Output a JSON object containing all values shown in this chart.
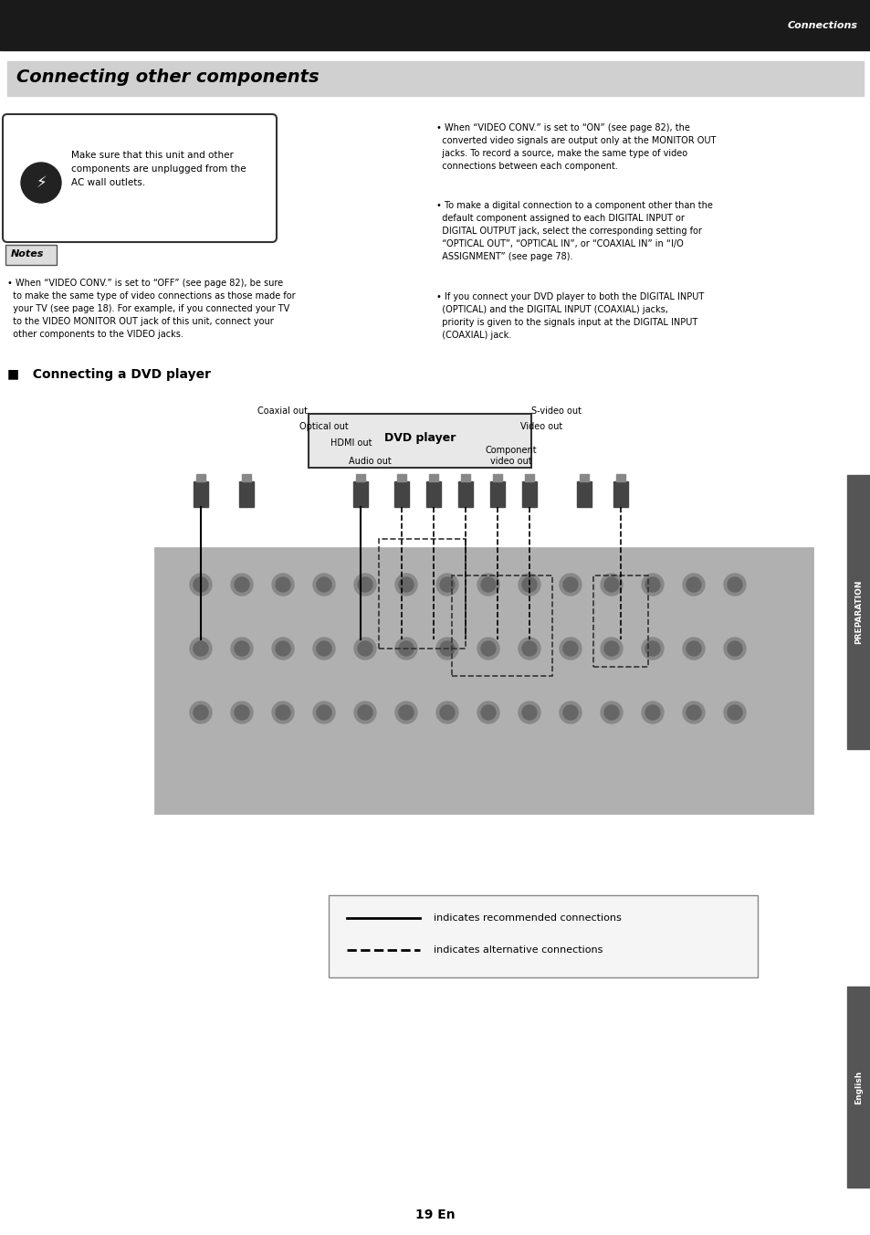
{
  "page_bg": "#ffffff",
  "top_bar_color": "#1a1a1a",
  "top_bar_text": "Connections",
  "top_bar_text_color": "#ffffff",
  "section_title_bg": "#c8c8c8",
  "section_title_text": "Connecting other components",
  "section_title_text_color": "#000000",
  "warning_box_text": "Make sure that this unit and other\ncomponents are unplugged from the\nAC wall outlets.",
  "notes_label": "Notes",
  "notes_text1": "• When “VIDEO CONV.” is set to “OFF” (see page 82), be sure\n  to make the same type of video connections as those made for\n  your TV (see page 18). For example, if you connected your TV\n  to the VIDEO MONITOR OUT jack of this unit, connect your\n  other components to the VIDEO jacks.",
  "right_bullet1": "• When “VIDEO CONV.” is set to “ON” (see page 82), the\n  converted video signals are output only at the MONITOR OUT\n  jacks. To record a source, make the same type of video\n  connections between each component.",
  "right_bullet2": "• To make a digital connection to a component other than the\n  default component assigned to each DIGITAL INPUT or\n  DIGITAL OUTPUT jack, select the corresponding setting for\n  “OPTICAL OUT”, “OPTICAL IN”, or “COAXIAL IN” in “I/O\n  ASSIGNMENT” (see page 78).",
  "right_bullet3": "• If you connect your DVD player to both the DIGITAL INPUT\n  (OPTICAL) and the DIGITAL INPUT (COAXIAL) jacks,\n  priority is given to the signals input at the DIGITAL INPUT\n  (COAXIAL) jack.",
  "dvd_section_title": "■   Connecting a DVD player",
  "dvd_player_label": "DVD player",
  "coaxial_out_label": "Coaxial out",
  "optical_out_label": "Optical out",
  "hdmi_out_label": "HDMI out",
  "audio_out_label": "Audio out",
  "svideo_out_label": "S-video out",
  "video_out_label": "Video out",
  "component_video_out_label": "Component\nvideo out",
  "legend_solid_text": "indicates recommended connections",
  "legend_dashed_text": "indicates alternative connections",
  "page_number": "19 En",
  "preparation_sidebar": "PREPARATION",
  "english_sidebar": "English",
  "sidebar_bg": "#555555"
}
